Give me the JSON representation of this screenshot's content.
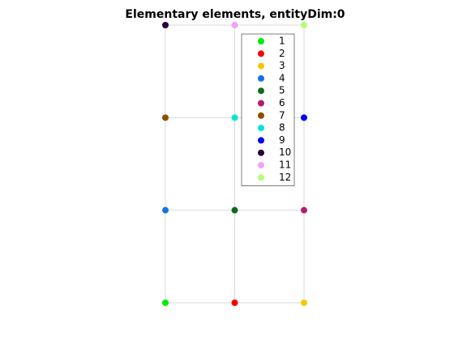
{
  "chart_data": {
    "type": "scatter",
    "title": "Elementary elements, entityDim:0",
    "xlim": [
      0,
      2
    ],
    "ylim": [
      0,
      3
    ],
    "series": [
      {
        "name": "1",
        "color": "#00ee00",
        "x": [
          0
        ],
        "y": [
          0
        ]
      },
      {
        "name": "2",
        "color": "#ff0000",
        "x": [
          1
        ],
        "y": [
          0
        ]
      },
      {
        "name": "3",
        "color": "#f5c800",
        "x": [
          2
        ],
        "y": [
          0
        ]
      },
      {
        "name": "4",
        "color": "#1474e0",
        "x": [
          0
        ],
        "y": [
          1
        ]
      },
      {
        "name": "5",
        "color": "#0e6b1e",
        "x": [
          1
        ],
        "y": [
          1
        ]
      },
      {
        "name": "6",
        "color": "#b01e6e",
        "x": [
          2
        ],
        "y": [
          1
        ]
      },
      {
        "name": "7",
        "color": "#8c5000",
        "x": [
          0
        ],
        "y": [
          2
        ]
      },
      {
        "name": "8",
        "color": "#00e6d2",
        "x": [
          1
        ],
        "y": [
          2
        ]
      },
      {
        "name": "9",
        "color": "#0000ff",
        "x": [
          2
        ],
        "y": [
          2
        ]
      },
      {
        "name": "10",
        "color": "#28003c",
        "x": [
          0
        ],
        "y": [
          3
        ]
      },
      {
        "name": "11",
        "color": "#f5a0f5",
        "x": [
          1
        ],
        "y": [
          3
        ]
      },
      {
        "name": "12",
        "color": "#b4ff78",
        "x": [
          2
        ],
        "y": [
          3
        ]
      }
    ]
  }
}
